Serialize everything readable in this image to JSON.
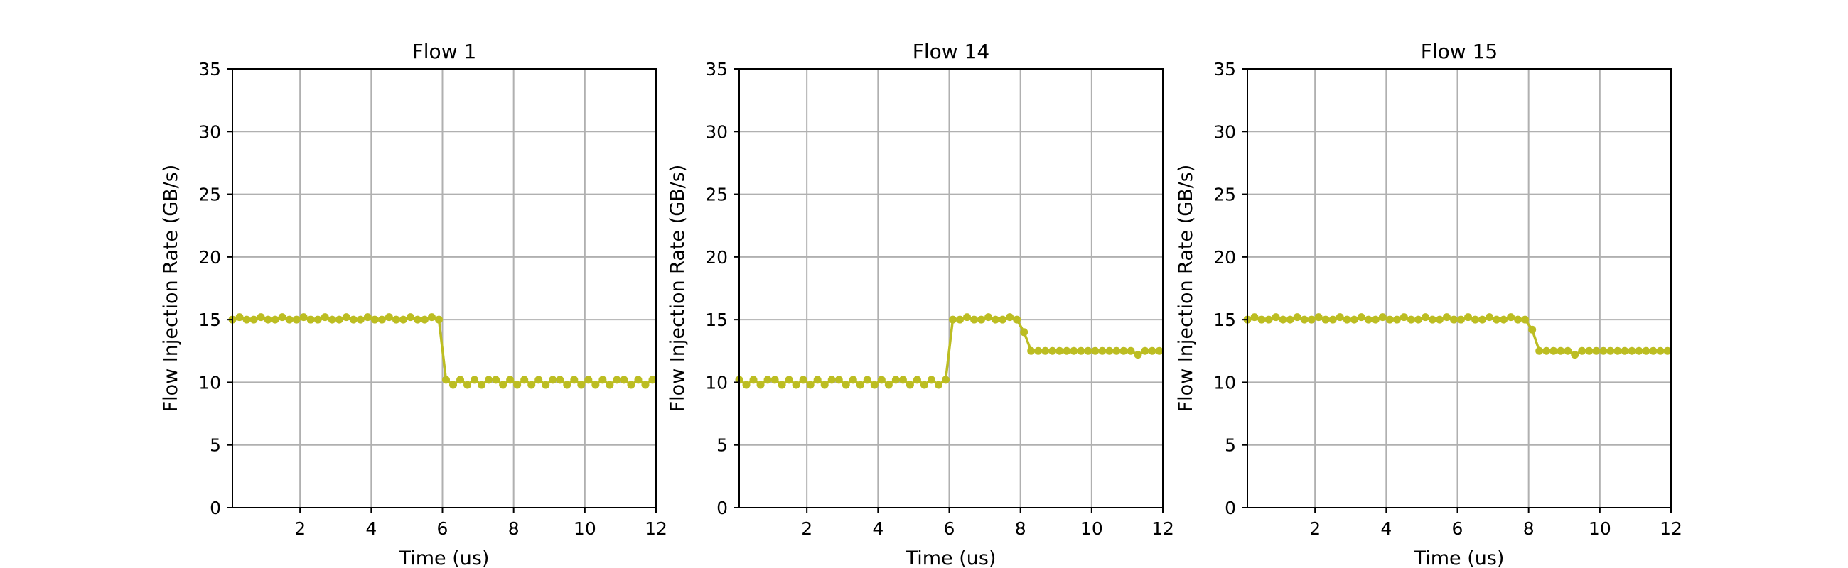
{
  "chart_data": [
    {
      "type": "line",
      "title": "Flow 1",
      "xlabel": "Time (us)",
      "ylabel": "Flow Injection Rate (GB/s)",
      "xlim": [
        0.1,
        12
      ],
      "ylim": [
        0,
        35
      ],
      "xticks": [
        2,
        4,
        6,
        8,
        10,
        12
      ],
      "yticks": [
        0,
        5,
        10,
        15,
        20,
        25,
        30,
        35
      ],
      "grid": true,
      "color": "#bcbd22",
      "series": [
        {
          "x": [
            0.1,
            0.3,
            0.5,
            0.7,
            0.9,
            1.1,
            1.3,
            1.5,
            1.7,
            1.9,
            2.1,
            2.3,
            2.5,
            2.7,
            2.9,
            3.1,
            3.3,
            3.5,
            3.7,
            3.9,
            4.1,
            4.3,
            4.5,
            4.7,
            4.9,
            5.1,
            5.3,
            5.5,
            5.7,
            5.9,
            6.1,
            6.3,
            6.5,
            6.7,
            6.9,
            7.1,
            7.3,
            7.5,
            7.7,
            7.9,
            8.1,
            8.3,
            8.5,
            8.7,
            8.9,
            9.1,
            9.3,
            9.5,
            9.7,
            9.9,
            10.1,
            10.3,
            10.5,
            10.7,
            10.9,
            11.1,
            11.3,
            11.5,
            11.7,
            11.9
          ],
          "y": [
            15.0,
            15.2,
            15.0,
            15.0,
            15.2,
            15.0,
            15.0,
            15.2,
            15.0,
            15.0,
            15.2,
            15.0,
            15.0,
            15.2,
            15.0,
            15.0,
            15.2,
            15.0,
            15.0,
            15.2,
            15.0,
            15.0,
            15.2,
            15.0,
            15.0,
            15.2,
            15.0,
            15.0,
            15.2,
            15.0,
            10.2,
            9.8,
            10.2,
            9.8,
            10.2,
            9.8,
            10.2,
            10.2,
            9.8,
            10.2,
            9.8,
            10.2,
            9.8,
            10.2,
            9.8,
            10.2,
            10.2,
            9.8,
            10.2,
            9.8,
            10.2,
            9.8,
            10.2,
            9.8,
            10.2,
            10.2,
            9.8,
            10.2,
            9.8,
            10.2
          ]
        }
      ]
    },
    {
      "type": "line",
      "title": "Flow 14",
      "xlabel": "Time (us)",
      "ylabel": "Flow Injection Rate (GB/s)",
      "xlim": [
        0.1,
        12
      ],
      "ylim": [
        0,
        35
      ],
      "xticks": [
        2,
        4,
        6,
        8,
        10,
        12
      ],
      "yticks": [
        0,
        5,
        10,
        15,
        20,
        25,
        30,
        35
      ],
      "grid": true,
      "color": "#bcbd22",
      "series": [
        {
          "x": [
            0.1,
            0.3,
            0.5,
            0.7,
            0.9,
            1.1,
            1.3,
            1.5,
            1.7,
            1.9,
            2.1,
            2.3,
            2.5,
            2.7,
            2.9,
            3.1,
            3.3,
            3.5,
            3.7,
            3.9,
            4.1,
            4.3,
            4.5,
            4.7,
            4.9,
            5.1,
            5.3,
            5.5,
            5.7,
            5.9,
            6.1,
            6.3,
            6.5,
            6.7,
            6.9,
            7.1,
            7.3,
            7.5,
            7.7,
            7.9,
            8.1,
            8.3,
            8.5,
            8.7,
            8.9,
            9.1,
            9.3,
            9.5,
            9.7,
            9.9,
            10.1,
            10.3,
            10.5,
            10.7,
            10.9,
            11.1,
            11.3,
            11.5,
            11.7,
            11.9
          ],
          "y": [
            10.2,
            9.8,
            10.2,
            9.8,
            10.2,
            10.2,
            9.8,
            10.2,
            9.8,
            10.2,
            9.8,
            10.2,
            9.8,
            10.2,
            10.2,
            9.8,
            10.2,
            9.8,
            10.2,
            9.8,
            10.2,
            9.8,
            10.2,
            10.2,
            9.8,
            10.2,
            9.8,
            10.2,
            9.8,
            10.2,
            15.0,
            15.0,
            15.2,
            15.0,
            15.0,
            15.2,
            15.0,
            15.0,
            15.2,
            15.0,
            14.0,
            12.5,
            12.5,
            12.5,
            12.5,
            12.5,
            12.5,
            12.5,
            12.5,
            12.5,
            12.5,
            12.5,
            12.5,
            12.5,
            12.5,
            12.5,
            12.2,
            12.5,
            12.5,
            12.5
          ]
        }
      ]
    },
    {
      "type": "line",
      "title": "Flow 15",
      "xlabel": "Time (us)",
      "ylabel": "Flow Injection Rate (GB/s)",
      "xlim": [
        0.1,
        12
      ],
      "ylim": [
        0,
        35
      ],
      "xticks": [
        2,
        4,
        6,
        8,
        10,
        12
      ],
      "yticks": [
        0,
        5,
        10,
        15,
        20,
        25,
        30,
        35
      ],
      "grid": true,
      "color": "#bcbd22",
      "series": [
        {
          "x": [
            0.1,
            0.3,
            0.5,
            0.7,
            0.9,
            1.1,
            1.3,
            1.5,
            1.7,
            1.9,
            2.1,
            2.3,
            2.5,
            2.7,
            2.9,
            3.1,
            3.3,
            3.5,
            3.7,
            3.9,
            4.1,
            4.3,
            4.5,
            4.7,
            4.9,
            5.1,
            5.3,
            5.5,
            5.7,
            5.9,
            6.1,
            6.3,
            6.5,
            6.7,
            6.9,
            7.1,
            7.3,
            7.5,
            7.7,
            7.9,
            8.1,
            8.3,
            8.5,
            8.7,
            8.9,
            9.1,
            9.3,
            9.5,
            9.7,
            9.9,
            10.1,
            10.3,
            10.5,
            10.7,
            10.9,
            11.1,
            11.3,
            11.5,
            11.7,
            11.9
          ],
          "y": [
            15.0,
            15.2,
            15.0,
            15.0,
            15.2,
            15.0,
            15.0,
            15.2,
            15.0,
            15.0,
            15.2,
            15.0,
            15.0,
            15.2,
            15.0,
            15.0,
            15.2,
            15.0,
            15.0,
            15.2,
            15.0,
            15.0,
            15.2,
            15.0,
            15.0,
            15.2,
            15.0,
            15.0,
            15.2,
            15.0,
            15.0,
            15.2,
            15.0,
            15.0,
            15.2,
            15.0,
            15.0,
            15.2,
            15.0,
            15.0,
            14.2,
            12.5,
            12.5,
            12.5,
            12.5,
            12.5,
            12.2,
            12.5,
            12.5,
            12.5,
            12.5,
            12.5,
            12.5,
            12.5,
            12.5,
            12.5,
            12.5,
            12.5,
            12.5,
            12.5
          ]
        }
      ]
    }
  ]
}
